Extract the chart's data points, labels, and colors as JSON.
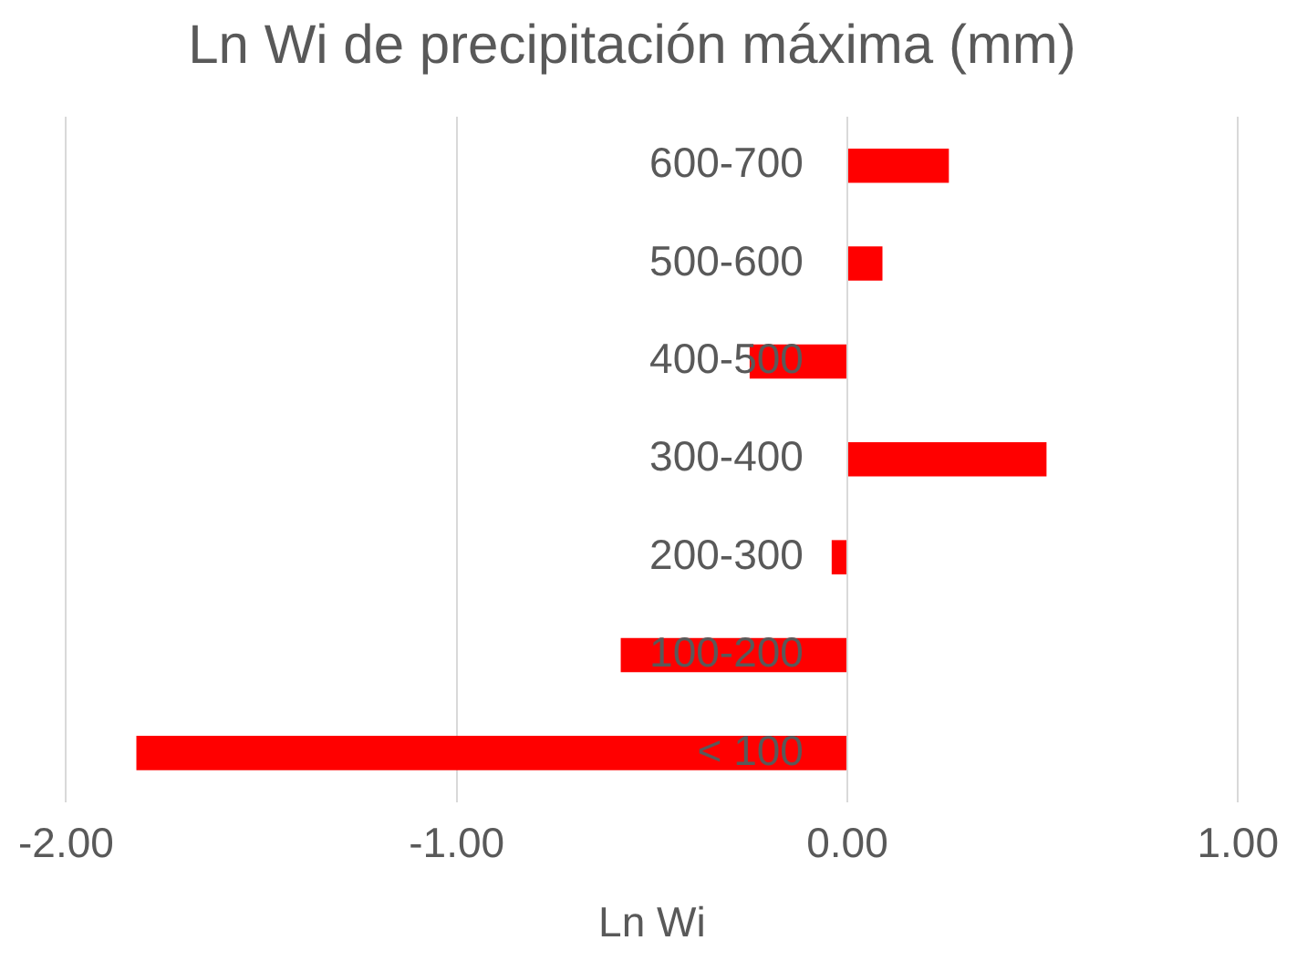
{
  "chart_data": {
    "type": "bar",
    "orientation": "horizontal",
    "title": "Ln Wi de precipitación máxima (mm)",
    "xlabel": "Ln Wi",
    "categories": [
      "600-700",
      "500-600",
      "400-500",
      "300-400",
      "200-300",
      "100-200",
      "< 100"
    ],
    "values": [
      0.26,
      0.09,
      -0.25,
      0.51,
      -0.04,
      -0.58,
      -1.82
    ],
    "color": "#ff0000",
    "xlim": [
      -2,
      1
    ],
    "xticks": [
      {
        "value": -2,
        "label": "-2.00"
      },
      {
        "value": -1,
        "label": "-1.00"
      },
      {
        "value": 0,
        "label": "0.00"
      },
      {
        "value": 1,
        "label": "1.00"
      }
    ],
    "grid": "x",
    "legend": false
  }
}
